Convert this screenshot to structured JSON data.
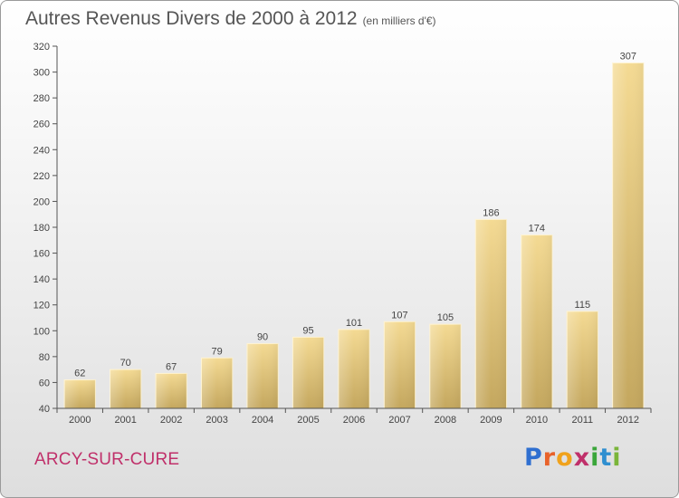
{
  "title": {
    "main": "Autres Revenus Divers de 2000 à 2012",
    "unit": "(en milliers d'€)"
  },
  "place_label": "ARCY-SUR-CURE",
  "logo": {
    "letters": [
      "P",
      "r",
      "o",
      "x",
      "i",
      "t",
      "i"
    ],
    "colors": [
      "#2f6fd0",
      "#e8622a",
      "#f0a21c",
      "#c0306a",
      "#3aa63a",
      "#2f8fd0",
      "#7ab53a"
    ]
  },
  "chart_data": {
    "type": "bar",
    "title": "Autres Revenus Divers de 2000 à 2012",
    "subtitle": "(en milliers d'€)",
    "categories": [
      "2000",
      "2001",
      "2002",
      "2003",
      "2004",
      "2005",
      "2006",
      "2007",
      "2008",
      "2009",
      "2010",
      "2011",
      "2012"
    ],
    "values": [
      62,
      70,
      67,
      79,
      90,
      95,
      101,
      107,
      105,
      186,
      174,
      115,
      307
    ],
    "data_labels": [
      "62",
      "70",
      "67",
      "79",
      "90",
      "95",
      "101",
      "107",
      "105",
      "186",
      "174",
      "115",
      "307"
    ],
    "ylim": [
      40,
      320
    ],
    "yticks": [
      "40",
      "60",
      "80",
      "100",
      "120",
      "140",
      "160",
      "180",
      "200",
      "220",
      "240",
      "260",
      "280",
      "300",
      "320"
    ],
    "xlabel": "",
    "ylabel": "",
    "grid": false,
    "bar_color": "#e6c87e"
  }
}
